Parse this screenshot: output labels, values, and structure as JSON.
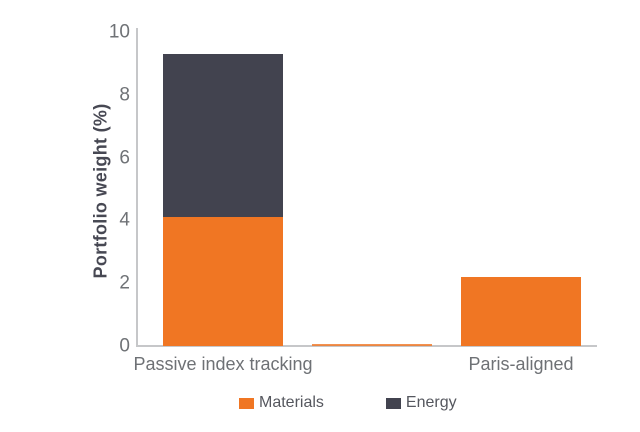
{
  "chart_data": {
    "type": "bar",
    "stacked": true,
    "orientation": "vertical",
    "title": "",
    "xlabel": "",
    "ylabel": "Portfolio weight (%)",
    "ylim": [
      0,
      10
    ],
    "yticks": [
      0,
      2,
      4,
      6,
      8,
      10
    ],
    "categories": [
      "Passive index tracking",
      "",
      "Paris-aligned"
    ],
    "series": [
      {
        "name": "Materials",
        "color": "#f07623",
        "values": [
          4.1,
          0.05,
          2.2
        ]
      },
      {
        "name": "Energy",
        "color": "#42434f",
        "values": [
          5.2,
          0,
          0
        ]
      }
    ],
    "grid": false,
    "legend_position": "bottom",
    "colors": {
      "axis_line": "#c6c7c9",
      "tick_label": "#6f7276",
      "category_label": "#6e7175",
      "legend_label": "#55575e",
      "y_axis_title": "#474853",
      "background": "#ffffff"
    }
  }
}
